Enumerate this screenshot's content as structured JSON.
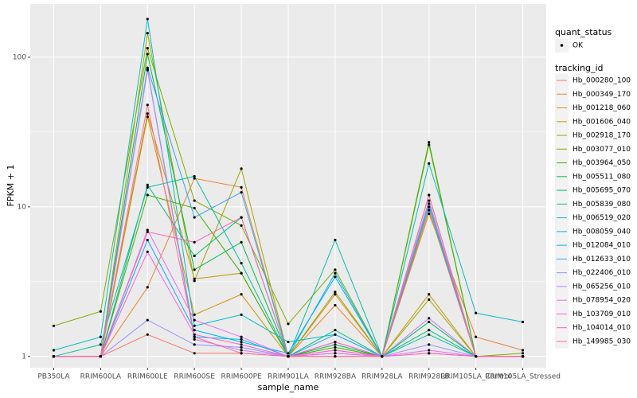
{
  "chart_data": {
    "type": "line",
    "x_label": "sample_name",
    "y_label": "FPKM + 1",
    "log_y": true,
    "grid": true,
    "legend_position": "right",
    "point_color": "#000000",
    "shape_legend_title": "quant_status",
    "shape_legend_labels": [
      "OK"
    ],
    "color_legend_title": "tracking_id",
    "categories": [
      "PB350LA",
      "RRIM600LA",
      "RRIM600LE",
      "RRIM600SE",
      "RRIM600PE",
      "RRIM901LA",
      "RRIM928BA",
      "RRIM928LA",
      "RRIM928LB",
      "RRIM105LA_Control",
      "RRIM105LA_Stressed"
    ],
    "ylim": [
      0.84,
      227
    ],
    "yticks": [
      1,
      10,
      100
    ],
    "series": [
      {
        "name": "Hb_000280_100",
        "color": "#F8766D",
        "values": [
          1,
          1,
          1.4,
          1.05,
          1.05,
          1,
          1,
          1,
          1.05,
          1,
          1
        ]
      },
      {
        "name": "Hb_000349_170",
        "color": "#EA8331",
        "values": [
          1,
          1,
          2.9,
          15.5,
          13.5,
          1,
          2.2,
          1,
          9,
          1.35,
          1.1
        ]
      },
      {
        "name": "Hb_001218_060",
        "color": "#D89000",
        "values": [
          1,
          1,
          40,
          1.9,
          2.6,
          1,
          2.6,
          1,
          9.5,
          1,
          1
        ]
      },
      {
        "name": "Hb_001606_040",
        "color": "#C09B00",
        "values": [
          1,
          1,
          42,
          3.3,
          3.6,
          1,
          1.25,
          1,
          2.6,
          1,
          1
        ]
      },
      {
        "name": "Hb_002918_170",
        "color": "#A3A500",
        "values": [
          1,
          1,
          145,
          3.2,
          18,
          1,
          2.7,
          1,
          2.4,
          1,
          1
        ]
      },
      {
        "name": "Hb_003077_010",
        "color": "#7CAE00",
        "values": [
          1.6,
          2.0,
          115,
          11,
          7.5,
          1.65,
          3.8,
          1,
          26,
          1,
          1.05
        ]
      },
      {
        "name": "Hb_003964_050",
        "color": "#39B600",
        "values": [
          1,
          1,
          12,
          9.8,
          3.6,
          1,
          1.15,
          1,
          27,
          1,
          1
        ]
      },
      {
        "name": "Hb_005511_080",
        "color": "#00BB4E",
        "values": [
          1,
          1,
          105,
          3.8,
          5.8,
          1,
          1.2,
          1,
          1.7,
          1,
          1
        ]
      },
      {
        "name": "Hb_005695_070",
        "color": "#00BF7D",
        "values": [
          1,
          1,
          14,
          4.7,
          8.5,
          1,
          1.5,
          1,
          1.5,
          1,
          1
        ]
      },
      {
        "name": "Hb_005839_080",
        "color": "#00C1A3",
        "values": [
          1,
          1.2,
          13.5,
          16,
          4.2,
          1,
          6,
          1,
          1.4,
          1,
          1
        ]
      },
      {
        "name": "Hb_006519_020",
        "color": "#00BFC4",
        "values": [
          1.1,
          1.35,
          180,
          1.6,
          1.9,
          1.25,
          1.4,
          1,
          19.5,
          1.95,
          1.7
        ]
      },
      {
        "name": "Hb_008059_040",
        "color": "#00BAE0",
        "values": [
          1,
          1,
          83,
          1.35,
          1.3,
          1,
          3.6,
          1,
          10.5,
          1,
          1
        ]
      },
      {
        "name": "Hb_012084_010",
        "color": "#00B0F6",
        "values": [
          1,
          1,
          6,
          1.5,
          1.25,
          1.05,
          3.4,
          1,
          12,
          1,
          1
        ]
      },
      {
        "name": "Hb_012633_010",
        "color": "#35A2FF",
        "values": [
          1,
          1,
          85,
          8.5,
          12.5,
          1,
          1.4,
          1,
          10,
          1,
          1
        ]
      },
      {
        "name": "Hb_022406_010",
        "color": "#9590FF",
        "values": [
          1,
          1,
          1.75,
          1.2,
          1.15,
          1,
          1.05,
          1,
          1.2,
          1,
          1
        ]
      },
      {
        "name": "Hb_065256_010",
        "color": "#C77CFF",
        "values": [
          1,
          1,
          82,
          1.3,
          1.1,
          1,
          1.1,
          1,
          1.8,
          1,
          1
        ]
      },
      {
        "name": "Hb_078954_020",
        "color": "#E76BF3",
        "values": [
          1,
          1,
          7,
          1.75,
          1.35,
          1,
          1.05,
          1,
          1.1,
          1,
          1
        ]
      },
      {
        "name": "Hb_103709_010",
        "color": "#FA62DB",
        "values": [
          1,
          1,
          5,
          1.4,
          1.2,
          1,
          1.25,
          1,
          11,
          1,
          1
        ]
      },
      {
        "name": "Hb_104014_010",
        "color": "#FF62BC",
        "values": [
          1,
          1,
          6.8,
          5.8,
          8.5,
          1,
          1.1,
          1,
          1.05,
          1,
          1
        ]
      },
      {
        "name": "Hb_149985_030",
        "color": "#FF6C91",
        "values": [
          1,
          1,
          48,
          1.35,
          1.05,
          1,
          1,
          1,
          12,
          1,
          1
        ]
      }
    ]
  }
}
